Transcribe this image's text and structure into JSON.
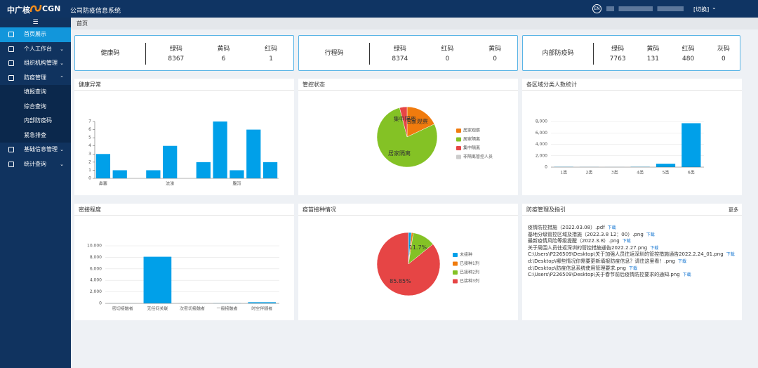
{
  "header": {
    "logo": "中广核",
    "brand": "CGN",
    "system": "公司防疫信息系统",
    "lang": "EN",
    "switch": "[切换]"
  },
  "breadcrumb": "首页",
  "menu": {
    "items": [
      "首页展示",
      "个人工作台",
      "组织机构管理",
      "防疫管理"
    ],
    "sub": [
      "填报查询",
      "综合查询",
      "内部防疫码",
      "紧急排查"
    ],
    "more": [
      "基础信息管理",
      "统计查询"
    ]
  },
  "cards": [
    {
      "title": "健康码",
      "items": [
        {
          "name": "绿码",
          "value": 8367
        },
        {
          "name": "黄码",
          "value": 6
        },
        {
          "name": "红码",
          "value": 1
        }
      ]
    },
    {
      "title": "行程码",
      "items": [
        {
          "name": "绿码",
          "value": 8374
        },
        {
          "name": "红码",
          "value": 0
        },
        {
          "name": "黄码",
          "value": 0
        }
      ]
    },
    {
      "title": "内部防疫码",
      "items": [
        {
          "name": "绿码",
          "value": 7763
        },
        {
          "name": "黄码",
          "value": 131
        },
        {
          "name": "红码",
          "value": 480
        },
        {
          "name": "灰码",
          "value": 0
        }
      ]
    }
  ],
  "chart_data": [
    {
      "type": "bar",
      "title": "健康异常",
      "categories": [
        "鼻塞",
        null,
        null,
        null,
        "流涕",
        null,
        null,
        null,
        "腹泻",
        null,
        null
      ],
      "values": [
        3,
        1,
        0,
        1,
        4,
        0,
        2,
        7,
        1,
        6,
        2
      ],
      "color": "#00a0e9",
      "ylim": [
        0,
        7
      ],
      "yticks": [
        0,
        1,
        2,
        3,
        4,
        5,
        6,
        7
      ],
      "grid": false
    },
    {
      "type": "pie",
      "title": "管控状态",
      "categories": [
        "居家观察",
        "居家隔离",
        "集中隔离",
        "非隔离管控人员"
      ],
      "values": [
        18,
        78,
        4,
        0
      ],
      "colors": [
        "#f07b0d",
        "#84c225",
        "#e64545",
        "#cccccc"
      ],
      "slice_labels": "name"
    },
    {
      "type": "bar",
      "title": "各区域分类人数统计",
      "categories": [
        "1类",
        "2类",
        "3类",
        "4类",
        "5类",
        "6类"
      ],
      "values": [
        50,
        20,
        10,
        60,
        600,
        7700
      ],
      "color": "#00a0e9",
      "ylim": [
        0,
        8000
      ],
      "yticks": [
        0,
        {
          "value": 2000,
          "label": "2,000"
        },
        {
          "value": 4000,
          "label": "4,000"
        },
        {
          "value": 6000,
          "label": "6,000"
        },
        {
          "value": 8000,
          "label": "8,000"
        }
      ],
      "grid": true
    },
    {
      "type": "bar",
      "title": "密接程度",
      "categories": [
        "密切接触者",
        "无任何关联",
        "次密切接触者",
        "一般接触者",
        "时空伴随者"
      ],
      "values": [
        10,
        8100,
        10,
        30,
        200
      ],
      "color": "#00a0e9",
      "ylim": [
        0,
        10000
      ],
      "yticks": [
        0,
        {
          "value": 2000,
          "label": "2,000"
        },
        {
          "value": 4000,
          "label": "4,000"
        },
        {
          "value": 6000,
          "label": "6,000"
        },
        {
          "value": 8000,
          "label": "8,000"
        },
        {
          "value": 10000,
          "label": "10,000"
        }
      ],
      "grid": true
    },
    {
      "type": "pie",
      "title": "疫苗接种情况",
      "categories": [
        "未接种",
        "已接种1剂",
        "已接种2剂",
        "已接种3剂"
      ],
      "values": [
        1.5,
        0.95,
        11.7,
        85.85
      ],
      "value_labels": [
        null,
        null,
        "11.7%",
        "85.85%"
      ],
      "colors": [
        "#00a0e9",
        "#f07b0d",
        "#84c225",
        "#e64545"
      ],
      "slice_labels": "value"
    }
  ],
  "notices": {
    "title": "防疫管理及指引",
    "more": "更多",
    "download": "下载",
    "items": [
      "疫情防控措施（2022.03.08）.pdf",
      "基地分级管控区域及措施（2022.3.8 12：00）.png",
      "最新疫情风险等级提醒（2022.3.8）.png",
      "关于周围人员往返深圳的管控措施通告2022.2.27.png",
      "C:\\Users\\P226509\\Desktop\\关于加强人员往返深圳的管控措施通告2022.2.24_01.png",
      "d:\\Desktop\\哪些情况你需要更新填报防疫信息？请往这里看！.png",
      "d:\\Desktop\\防疫信息系统使用管理要求.png",
      "C:\\Users\\P226509\\Desktop\\关于春节前后疫情防控要求的通知.png"
    ]
  }
}
